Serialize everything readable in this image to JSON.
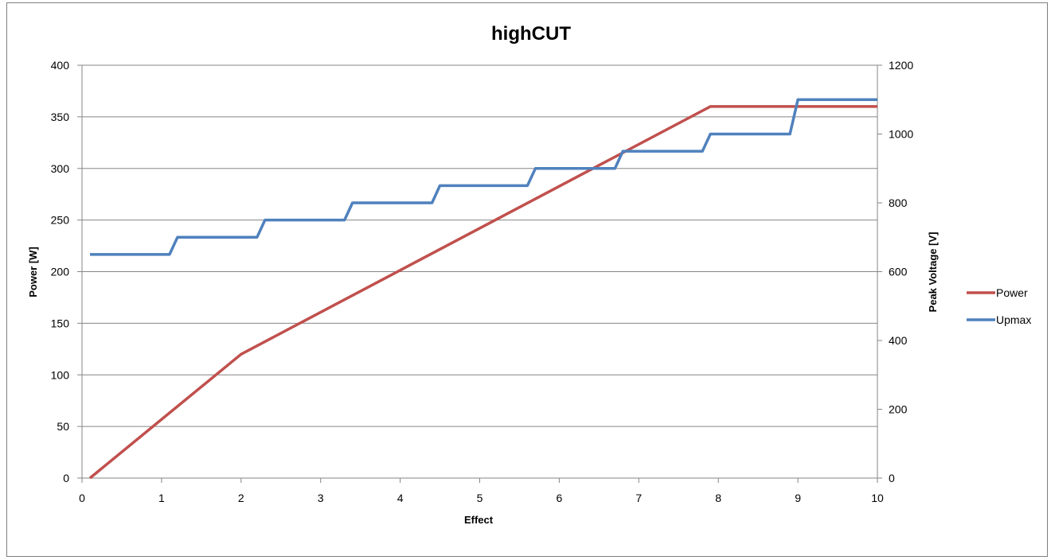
{
  "chart_data": {
    "type": "line",
    "title": "highCUT",
    "xlabel": "Effect",
    "ylabel": "Power [W]",
    "y2label": "Peak Voltage [V]",
    "xlim": [
      0,
      10
    ],
    "ylim": [
      0,
      400
    ],
    "y2lim": [
      0,
      1200
    ],
    "x_ticks": [
      "0",
      "1",
      "2",
      "3",
      "4",
      "5",
      "6",
      "7",
      "8",
      "9",
      "10"
    ],
    "y_ticks": [
      "0",
      "50",
      "100",
      "150",
      "200",
      "250",
      "300",
      "350",
      "400"
    ],
    "y2_ticks": [
      "0",
      "200",
      "400",
      "600",
      "800",
      "1000",
      "1200"
    ],
    "grid": "horizontal",
    "legend_position": "right",
    "series": [
      {
        "name": "Power",
        "axis": "left",
        "color": "#c0504d",
        "points": [
          [
            0.1,
            0
          ],
          [
            2.0,
            120
          ],
          [
            7.9,
            360
          ],
          [
            10,
            360
          ]
        ]
      },
      {
        "name": "Upmax",
        "axis": "right",
        "color": "#4f81bd",
        "points": [
          [
            0.1,
            650
          ],
          [
            1.1,
            650
          ],
          [
            1.2,
            700
          ],
          [
            2.2,
            700
          ],
          [
            2.3,
            750
          ],
          [
            3.3,
            750
          ],
          [
            3.4,
            800
          ],
          [
            4.4,
            800
          ],
          [
            4.5,
            850
          ],
          [
            5.6,
            850
          ],
          [
            5.7,
            900
          ],
          [
            6.7,
            900
          ],
          [
            6.8,
            950
          ],
          [
            7.8,
            950
          ],
          [
            7.9,
            1000
          ],
          [
            8.9,
            1000
          ],
          [
            9.0,
            1100
          ],
          [
            10,
            1100
          ]
        ]
      }
    ]
  }
}
